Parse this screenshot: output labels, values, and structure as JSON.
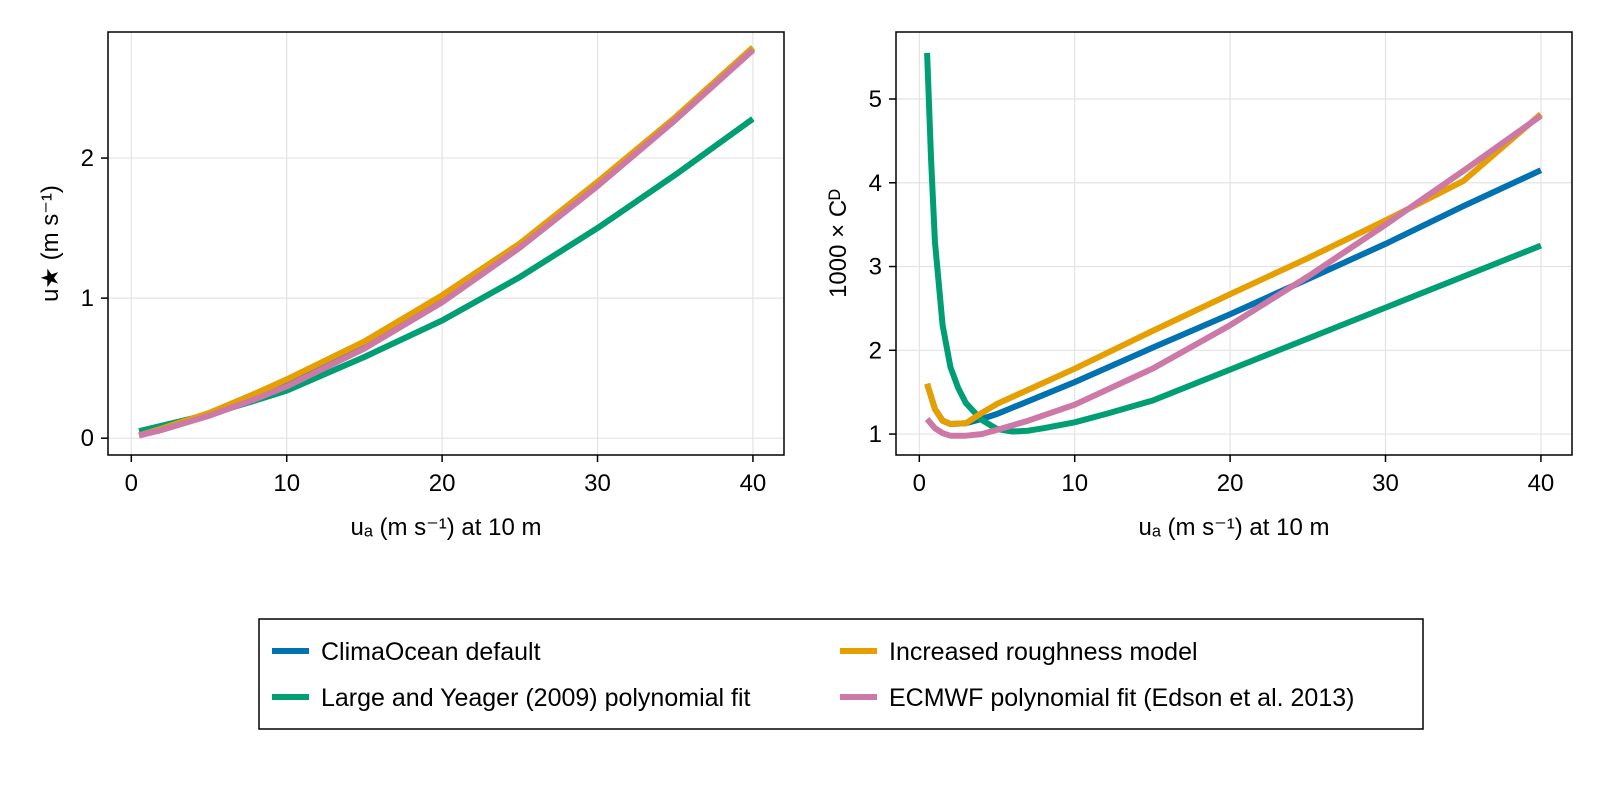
{
  "chart_data": [
    {
      "type": "line",
      "title": "",
      "xlabel": "uₐ (m s⁻¹) at 10 m",
      "ylabel": "u★ (m s⁻¹)",
      "xlim": [
        -1.5,
        42
      ],
      "ylim": [
        -0.12,
        2.9
      ],
      "xticks": [
        0,
        10,
        20,
        30,
        40
      ],
      "yticks": [
        0,
        1,
        2
      ],
      "grid": true,
      "series": [
        {
          "name": "ClimaOcean default",
          "color": "#0072b2",
          "x": [
            0.5,
            2,
            5,
            8,
            10,
            15,
            20,
            25,
            30,
            35,
            40
          ],
          "y": [
            0.02,
            0.07,
            0.17,
            0.3,
            0.39,
            0.66,
            0.99,
            1.37,
            1.81,
            2.28,
            2.78
          ]
        },
        {
          "name": "Large and Yeager (2009) polynomial fit",
          "color": "#009e73",
          "x": [
            0.5,
            2,
            5,
            8,
            10,
            15,
            20,
            25,
            30,
            35,
            40
          ],
          "y": [
            0.05,
            0.09,
            0.17,
            0.27,
            0.34,
            0.58,
            0.84,
            1.15,
            1.5,
            1.88,
            2.28
          ]
        },
        {
          "name": "Increased roughness model",
          "color": "#e69f00",
          "x": [
            0.5,
            2,
            5,
            8,
            10,
            15,
            20,
            25,
            30,
            35,
            40
          ],
          "y": [
            0.02,
            0.07,
            0.18,
            0.32,
            0.42,
            0.69,
            1.02,
            1.39,
            1.83,
            2.29,
            2.79
          ]
        },
        {
          "name": "ECMWF polynomial fit (Edson et al. 2013)",
          "color": "#cc79a7",
          "x": [
            0.5,
            2,
            5,
            8,
            10,
            15,
            20,
            25,
            30,
            35,
            40
          ],
          "y": [
            0.02,
            0.06,
            0.16,
            0.28,
            0.37,
            0.64,
            0.97,
            1.36,
            1.8,
            2.27,
            2.77
          ]
        }
      ]
    },
    {
      "type": "line",
      "title": "",
      "xlabel": "uₐ (m s⁻¹) at 10 m",
      "ylabel": "1000 × Cᴰ",
      "xlim": [
        -1.5,
        42
      ],
      "ylim": [
        0.75,
        5.8
      ],
      "xticks": [
        0,
        10,
        20,
        30,
        40
      ],
      "yticks": [
        1,
        2,
        3,
        4,
        5
      ],
      "grid": true,
      "series": [
        {
          "name": "ClimaOcean default",
          "color": "#0072b2",
          "x": [
            0.5,
            1,
            1.5,
            2,
            3,
            4,
            5,
            10,
            15,
            20,
            25,
            30,
            35,
            40
          ],
          "y": [
            1.6,
            1.3,
            1.16,
            1.12,
            1.13,
            1.18,
            1.24,
            1.62,
            2.03,
            2.43,
            2.85,
            3.27,
            3.72,
            4.15
          ]
        },
        {
          "name": "Large and Yeager (2009) polynomial fit",
          "color": "#009e73",
          "x": [
            0.5,
            0.75,
            1,
            1.5,
            2,
            2.5,
            3,
            4,
            5,
            6,
            7,
            8,
            10,
            12,
            15,
            20,
            25,
            30,
            35,
            40
          ],
          "y": [
            5.55,
            4.3,
            3.3,
            2.3,
            1.8,
            1.55,
            1.37,
            1.17,
            1.06,
            1.03,
            1.04,
            1.07,
            1.14,
            1.24,
            1.4,
            1.77,
            2.14,
            2.51,
            2.88,
            3.25
          ]
        },
        {
          "name": "Increased roughness model",
          "color": "#e69f00",
          "x": [
            0.5,
            1,
            1.5,
            2,
            3,
            4,
            5,
            10,
            15,
            20,
            25,
            30,
            35,
            40
          ],
          "y": [
            1.6,
            1.3,
            1.16,
            1.12,
            1.13,
            1.25,
            1.36,
            1.78,
            2.23,
            2.67,
            3.1,
            3.55,
            4.02,
            4.82
          ]
        },
        {
          "name": "ECMWF polynomial fit (Edson et al. 2013)",
          "color": "#cc79a7",
          "x": [
            0.5,
            1,
            1.5,
            2,
            3,
            4,
            5,
            7,
            10,
            15,
            20,
            25,
            30,
            35,
            40
          ],
          "y": [
            1.18,
            1.07,
            1.01,
            0.98,
            0.98,
            1.0,
            1.05,
            1.16,
            1.35,
            1.78,
            2.3,
            2.88,
            3.5,
            4.14,
            4.8
          ]
        }
      ]
    }
  ],
  "legend": {
    "entries": [
      {
        "label": "ClimaOcean default",
        "color": "#0072b2"
      },
      {
        "label": "Increased roughness model",
        "color": "#e69f00"
      },
      {
        "label": "Large and Yeager (2009) polynomial fit",
        "color": "#009e73"
      },
      {
        "label": "ECMWF polynomial fit (Edson et al. 2013)",
        "color": "#cc79a7"
      }
    ]
  }
}
